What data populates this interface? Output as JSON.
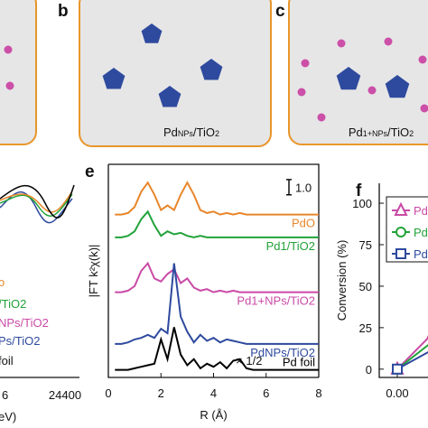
{
  "schematics": [
    {
      "label": "b",
      "caption": [
        "Pd",
        "NPs",
        "/TiO",
        "2"
      ]
    },
    {
      "label": "c",
      "caption": [
        "Pd",
        "1+NPs",
        "/TiO",
        "2"
      ]
    }
  ],
  "cropped_panel": {
    "tick_labels": [
      "6",
      "24400"
    ],
    "xlabel": "eV)",
    "legend": [
      "o",
      "/TiO2",
      "NPs/TiO2",
      "Ps/TiO2",
      "foil"
    ]
  },
  "chart_data": [
    {
      "type": "line",
      "label": "e",
      "xlabel": "R (Å)",
      "ylabel": "|FT k²χ(k)|",
      "scale_bar": "1.0",
      "annotation": "× 1/2",
      "xlim": [
        0,
        8
      ],
      "xticks": [
        0,
        2,
        4,
        6,
        8
      ],
      "ylim": [
        0,
        14
      ],
      "x": [
        0,
        0.25,
        0.5,
        0.75,
        1,
        1.25,
        1.5,
        1.75,
        2,
        2.25,
        2.5,
        2.75,
        3,
        3.25,
        3.5,
        3.75,
        4,
        4.25,
        4.5,
        4.75,
        5,
        5.25,
        5.5,
        5.75,
        6,
        6.25,
        6.5,
        6.75,
        7,
        7.25,
        7.5,
        7.75,
        8
      ],
      "series": [
        {
          "name": "PdO",
          "color": "#e8862a",
          "values": [
            null,
            10.7,
            10.7,
            10.8,
            11.2,
            12.2,
            12.8,
            12.0,
            11.0,
            11.3,
            11.0,
            12.0,
            12.8,
            12.0,
            11.0,
            10.8,
            10.9,
            10.7,
            10.8,
            10.7,
            10.8,
            10.7,
            10.7,
            10.7,
            10.7,
            10.7,
            10.7,
            10.7,
            10.7,
            10.7,
            10.7,
            10.7,
            10.7
          ]
        },
        {
          "name": "Pd1/TiO2",
          "color": "#22a33a",
          "values": [
            null,
            9.2,
            9.2,
            9.3,
            9.6,
            10.4,
            10.9,
            10.0,
            9.3,
            9.6,
            9.4,
            9.5,
            9.3,
            9.2,
            9.3,
            9.2,
            9.2,
            9.2,
            9.2,
            9.2,
            9.2,
            9.2,
            9.2,
            9.2,
            9.2,
            9.2,
            9.2,
            9.2,
            9.2,
            9.2,
            9.2,
            9.2,
            9.2
          ]
        },
        {
          "name": "Pd1+NPs/TiO2",
          "color": "#c94aa6",
          "values": [
            null,
            5.6,
            5.6,
            5.7,
            6.0,
            7.0,
            7.5,
            6.5,
            6.3,
            6.8,
            7.1,
            6.2,
            6.5,
            5.9,
            5.7,
            5.8,
            5.6,
            5.7,
            5.6,
            5.7,
            5.6,
            5.6,
            5.6,
            5.6,
            5.6,
            5.6,
            5.6,
            5.6,
            5.6,
            5.6,
            5.6,
            5.6,
            5.6
          ]
        },
        {
          "name": "PdNPs/TiO2",
          "color": "#2e4a9e",
          "values": [
            null,
            2.2,
            2.2,
            2.3,
            2.5,
            2.6,
            2.8,
            2.6,
            3.2,
            2.9,
            7.5,
            4.0,
            3.0,
            2.3,
            2.8,
            2.4,
            2.6,
            2.3,
            2.5,
            2.4,
            2.3,
            2.2,
            2.2,
            2.2,
            2.2,
            2.2,
            2.2,
            2.2,
            2.2,
            2.2,
            2.2,
            2.2,
            2.2
          ]
        },
        {
          "name": "Pd foil",
          "color": "#000000",
          "values": [
            null,
            0.5,
            0.5,
            0.5,
            0.6,
            0.7,
            0.8,
            0.9,
            2.5,
            1.2,
            3.3,
            1.5,
            0.8,
            1.2,
            0.6,
            0.9,
            0.7,
            1.0,
            0.6,
            1.1,
            1.2,
            0.6,
            0.5,
            0.5,
            0.5,
            0.5,
            0.5,
            0.5,
            0.5,
            0.5,
            0.5,
            0.5,
            0.5
          ]
        }
      ]
    },
    {
      "type": "line",
      "label": "f",
      "ylabel": "Conversion (%)",
      "xlim": [
        -0.05,
        0.2
      ],
      "xticks": [
        {
          "value": 0,
          "label": "0.00"
        }
      ],
      "ylim": [
        -5,
        112
      ],
      "yticks": [
        0,
        25,
        50,
        75,
        100
      ],
      "x": [
        0,
        0.1
      ],
      "series": [
        {
          "name": "Pd",
          "color": "#c94aa6",
          "marker": "triangle",
          "values": [
            0,
            22
          ]
        },
        {
          "name": "Pd",
          "color": "#22a33a",
          "marker": "circle",
          "values": [
            0,
            17
          ]
        },
        {
          "name": "Pd",
          "color": "#2e4a9e",
          "marker": "square",
          "values": [
            0,
            12
          ]
        }
      ]
    }
  ]
}
